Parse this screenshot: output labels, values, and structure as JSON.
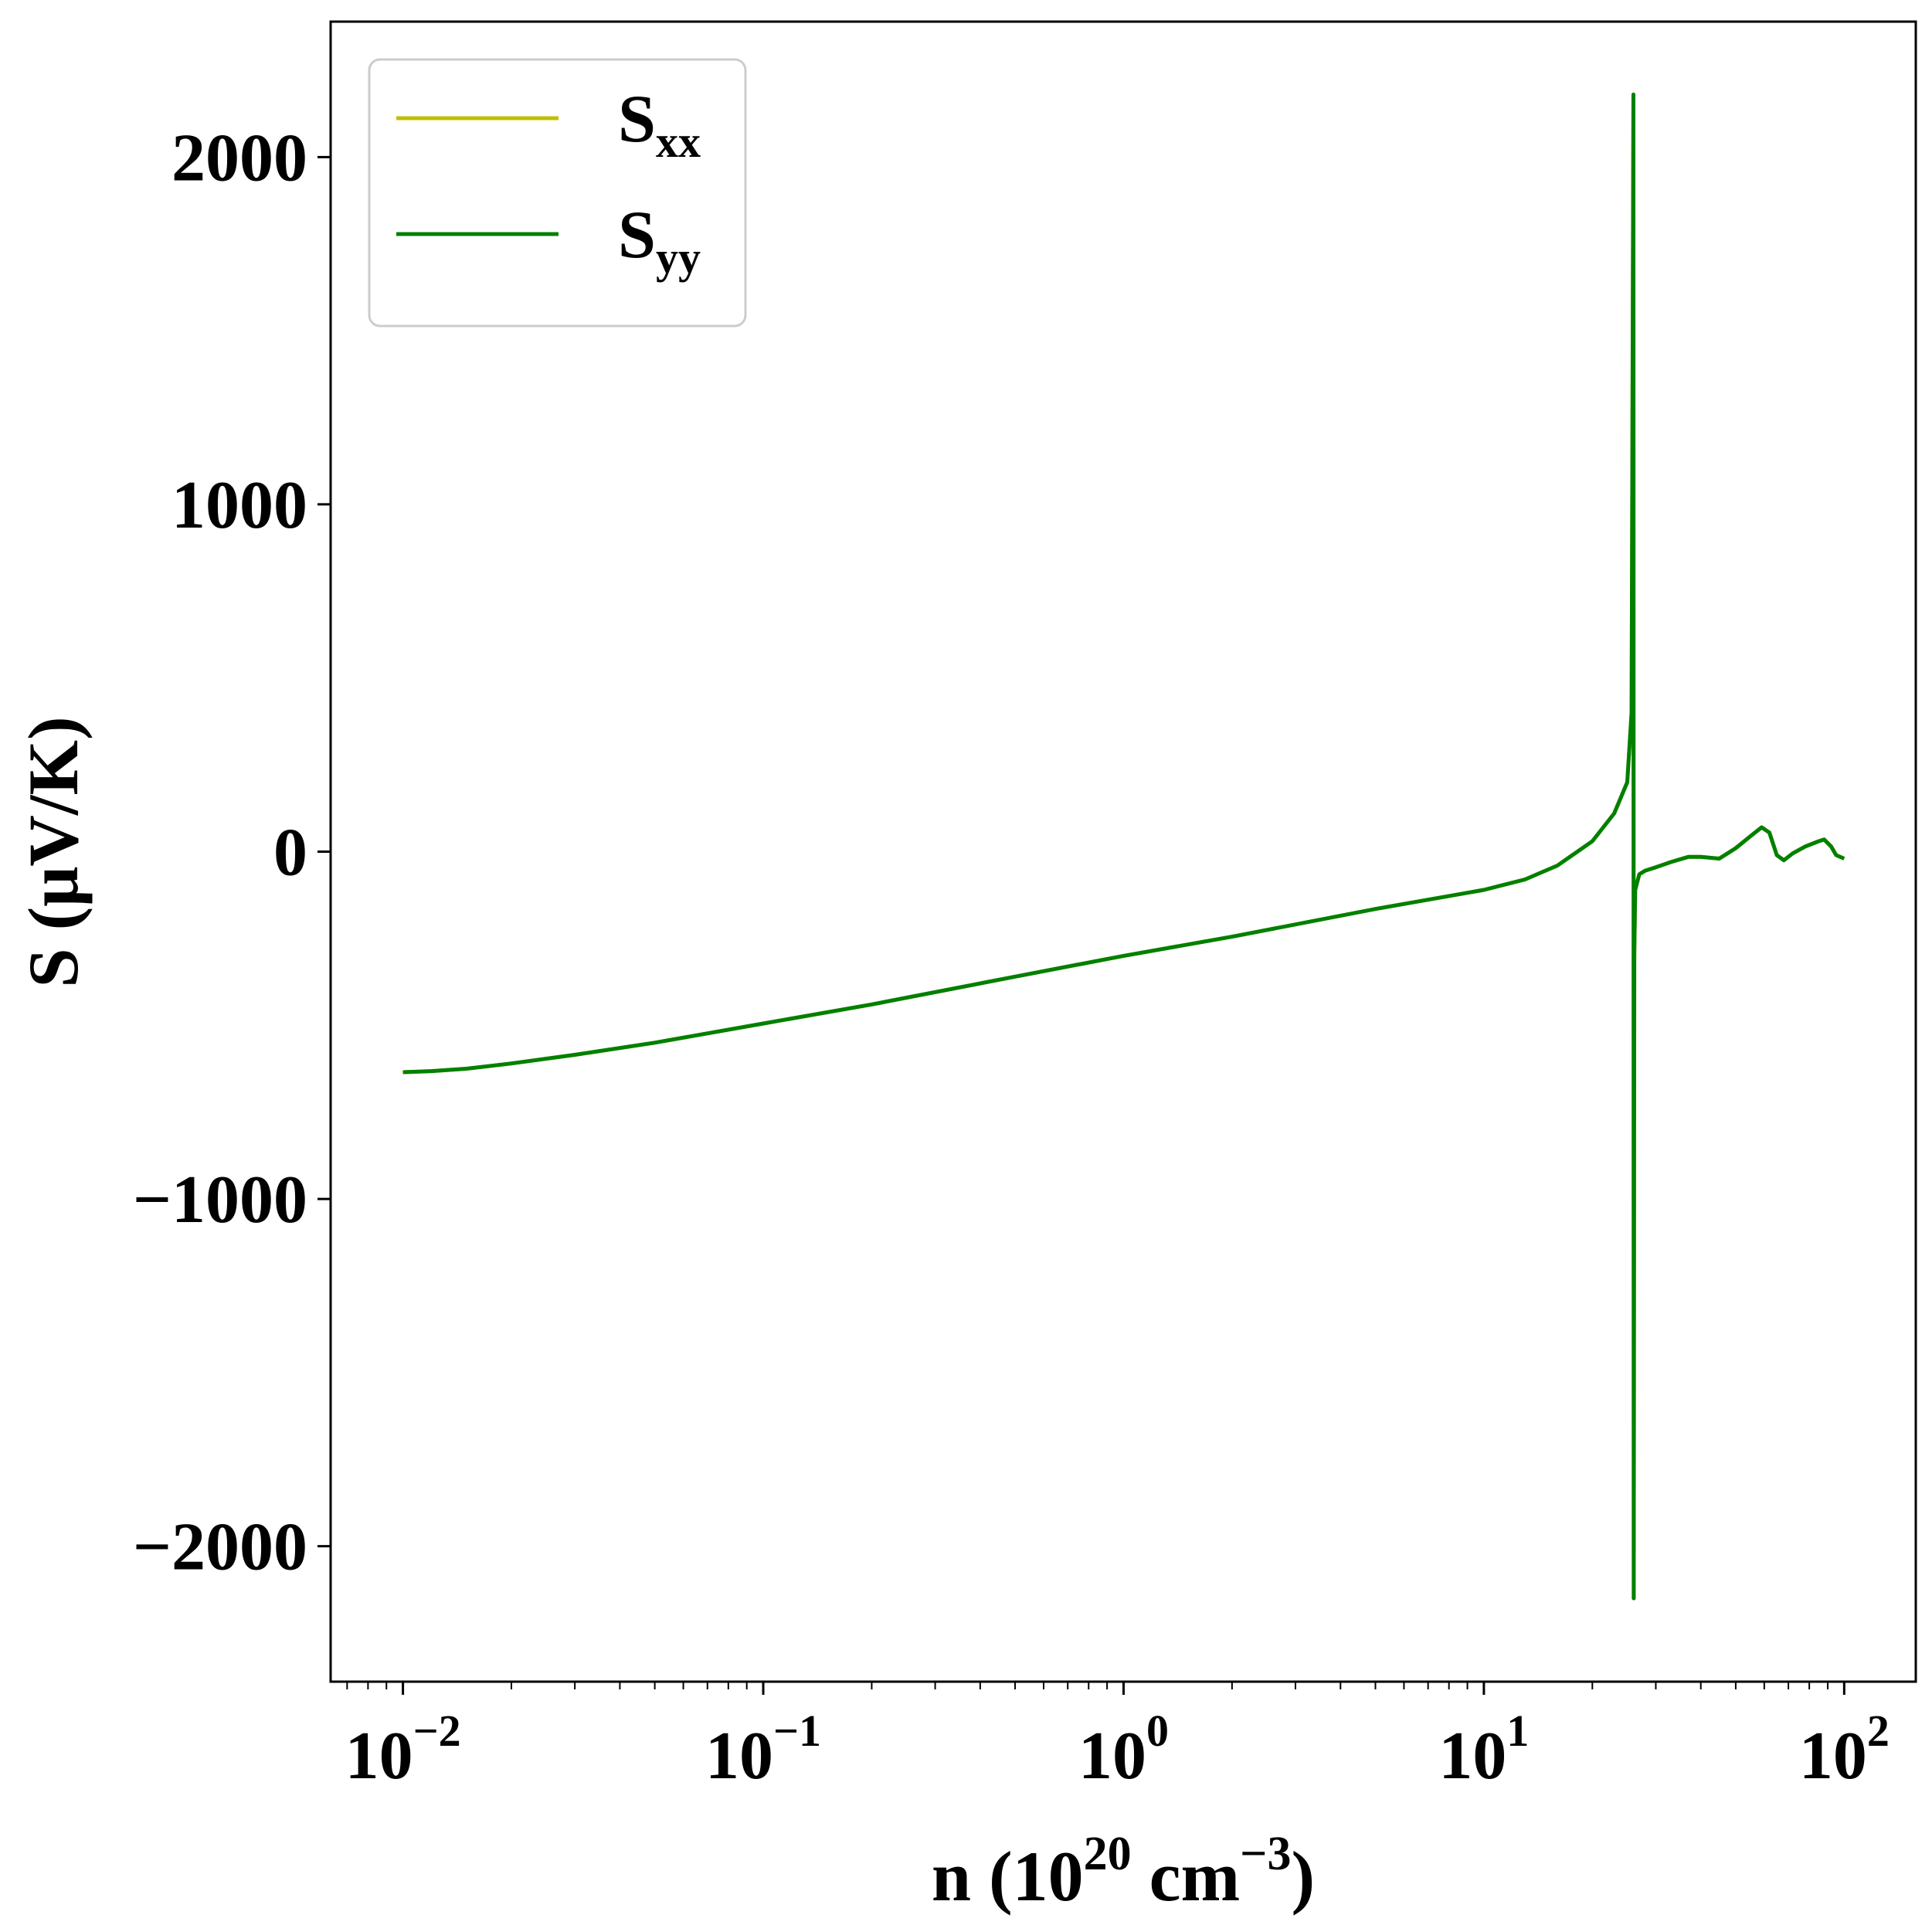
{
  "chart_data": {
    "type": "line",
    "xscale": "log",
    "xlabel": {
      "text": "n (10",
      "sup1": "20",
      "mid": " cm",
      "sup2": "−3",
      "end": ")"
    },
    "ylabel": "S (μV/K)",
    "xlim": [
      0.0063,
      158
    ],
    "ylim": [
      -2390,
      2390
    ],
    "xticks": [
      {
        "value": 0.01,
        "base": "10",
        "exp": "−2"
      },
      {
        "value": 0.1,
        "base": "10",
        "exp": "−1"
      },
      {
        "value": 1,
        "base": "10",
        "exp": "0"
      },
      {
        "value": 10,
        "base": "10",
        "exp": "1"
      },
      {
        "value": 100,
        "base": "10",
        "exp": "2"
      }
    ],
    "yticks": [
      {
        "value": 2000,
        "label": "2000"
      },
      {
        "value": 1000,
        "label": "1000"
      },
      {
        "value": 0,
        "label": "0"
      },
      {
        "value": -1000,
        "label": "−1000"
      },
      {
        "value": -2000,
        "label": "−2000"
      }
    ],
    "legend": {
      "position": "upper-left"
    },
    "series": [
      {
        "name": "S",
        "name_sub": "xx",
        "color": "#bfbf00",
        "x": [
          0.01,
          0.012,
          0.015,
          0.02,
          0.03,
          0.05,
          0.1,
          0.2,
          0.5,
          1,
          2,
          5,
          10,
          13,
          16,
          20,
          23,
          25,
          25.7,
          26.0,
          26.05,
          26.15,
          26.3,
          27,
          28,
          30,
          33,
          37,
          40,
          45,
          50,
          55,
          59,
          62,
          65,
          68,
          72,
          78,
          85,
          88,
          92,
          95,
          100
        ],
        "y": [
          -635,
          -632,
          -625,
          -610,
          -585,
          -550,
          -495,
          -440,
          -360,
          -300,
          -245,
          -165,
          -110,
          -80,
          -40,
          30,
          110,
          200,
          400,
          2180,
          -2150,
          -300,
          -110,
          -65,
          -55,
          -45,
          -30,
          -15,
          -15,
          -20,
          10,
          45,
          70,
          55,
          -10,
          -25,
          -5,
          15,
          30,
          35,
          15,
          -10,
          -20
        ]
      },
      {
        "name": "S",
        "name_sub": "yy",
        "color": "#008000",
        "x": [
          0.01,
          0.012,
          0.015,
          0.02,
          0.03,
          0.05,
          0.1,
          0.2,
          0.5,
          1,
          2,
          5,
          10,
          13,
          16,
          20,
          23,
          25,
          25.7,
          26.0,
          26.05,
          26.15,
          26.3,
          27,
          28,
          30,
          33,
          37,
          40,
          45,
          50,
          55,
          59,
          62,
          65,
          68,
          72,
          78,
          85,
          88,
          92,
          95,
          100
        ],
        "y": [
          -635,
          -632,
          -625,
          -610,
          -585,
          -550,
          -495,
          -440,
          -360,
          -300,
          -245,
          -165,
          -110,
          -80,
          -40,
          30,
          110,
          200,
          400,
          2180,
          -2150,
          -300,
          -110,
          -65,
          -55,
          -45,
          -30,
          -15,
          -15,
          -20,
          10,
          45,
          70,
          55,
          -10,
          -25,
          -5,
          15,
          30,
          35,
          15,
          -10,
          -20
        ]
      }
    ]
  }
}
